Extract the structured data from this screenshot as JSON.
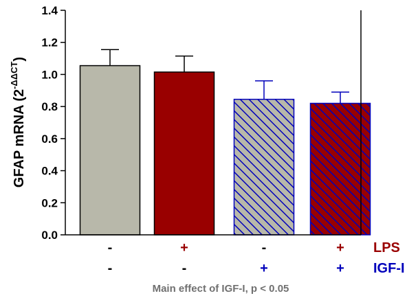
{
  "chart_data": {
    "type": "bar",
    "ylabel_main": "GFAP mRNA (2",
    "ylabel_sup": "-ΔΔCT",
    "ylabel_close": ")",
    "ylim": [
      0.0,
      1.4
    ],
    "yticks": [
      "0.0",
      "0.2",
      "0.4",
      "0.6",
      "0.8",
      "1.0",
      "1.2",
      "1.4"
    ],
    "ytick_values": [
      0.0,
      0.2,
      0.4,
      0.6,
      0.8,
      1.0,
      1.2,
      1.4
    ],
    "bars": [
      {
        "value": 1.055,
        "error": 0.1,
        "fill": "#b8b8aa",
        "edge": "#000000",
        "hatch": false
      },
      {
        "value": 1.015,
        "error": 0.1,
        "fill": "#990000",
        "edge": "#000000",
        "hatch": false
      },
      {
        "value": 0.845,
        "error": 0.115,
        "fill": "#b8b8aa",
        "edge": "#0000bb",
        "hatch": true
      },
      {
        "value": 0.82,
        "error": 0.07,
        "fill": "#990000",
        "edge": "#0000bb",
        "hatch": true
      }
    ],
    "factors": [
      {
        "name": "LPS",
        "color": "#990000",
        "marks": [
          "-",
          "+",
          "-",
          "+"
        ],
        "mark_colors": [
          "#000000",
          "#990000",
          "#000000",
          "#990000"
        ]
      },
      {
        "name": "IGF-I",
        "color": "#0000bb",
        "marks": [
          "-",
          "-",
          "+",
          "+"
        ],
        "mark_colors": [
          "#000000",
          "#000000",
          "#0000bb",
          "#0000bb"
        ]
      }
    ],
    "footnote": "Main effect of IGF-I, p < 0.05",
    "grid": false
  }
}
